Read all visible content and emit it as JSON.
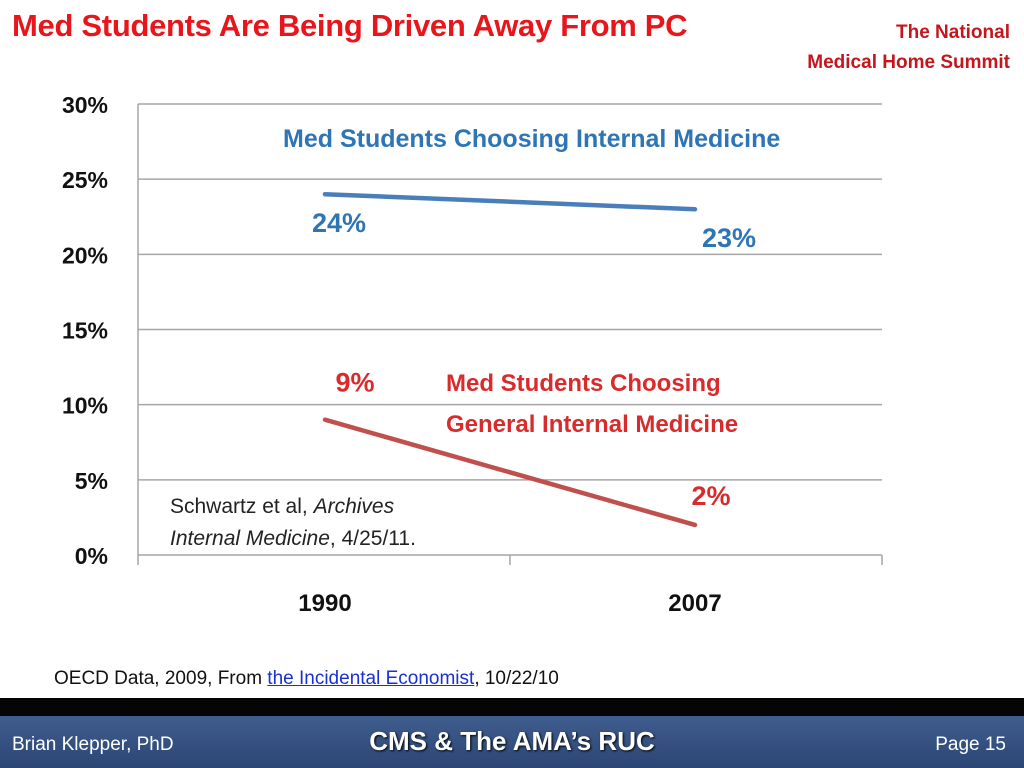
{
  "header": {
    "title": "Med Students Are Being Driven Away From PC",
    "org_line1": "The National",
    "org_line2": "Medical Home Summit"
  },
  "chart_data": {
    "type": "line",
    "x": [
      "1990",
      "2007"
    ],
    "ylim": [
      0,
      30
    ],
    "yticks": [
      "0%",
      "5%",
      "10%",
      "15%",
      "20%",
      "25%",
      "30%"
    ],
    "grid": true,
    "series": [
      {
        "name": "Med Students Choosing Internal  Medicine",
        "values": [
          24,
          23
        ],
        "labels": [
          "24%",
          "23%"
        ],
        "color": "#4a7ebb"
      },
      {
        "name_line1": "Med Students Choosing",
        "name_line2": "General Internal  Medicine",
        "values": [
          9,
          2
        ],
        "labels": [
          "9%",
          "2%"
        ],
        "color": "#c0504d"
      }
    ],
    "annotation": {
      "part1": "Schwartz et al, ",
      "part2_italic": "Archives",
      "part3_italic": "Internal Medicine",
      "part4": ", 4/25/11."
    }
  },
  "source": {
    "prefix": "OECD Data, 2009, From ",
    "link_text": "the Incidental Economist",
    "suffix": ", 10/22/10"
  },
  "footer": {
    "author": "Brian Klepper, PhD",
    "center": "CMS & The AMA’s RUC",
    "page": "Page 15"
  },
  "colors": {
    "title": "#e8151b",
    "series_blue": "#4a7ebb",
    "series_red": "#c0504d",
    "label_blue": "#2e75b6",
    "label_red": "#d92b2b",
    "footer_bar": "#2c4674"
  }
}
